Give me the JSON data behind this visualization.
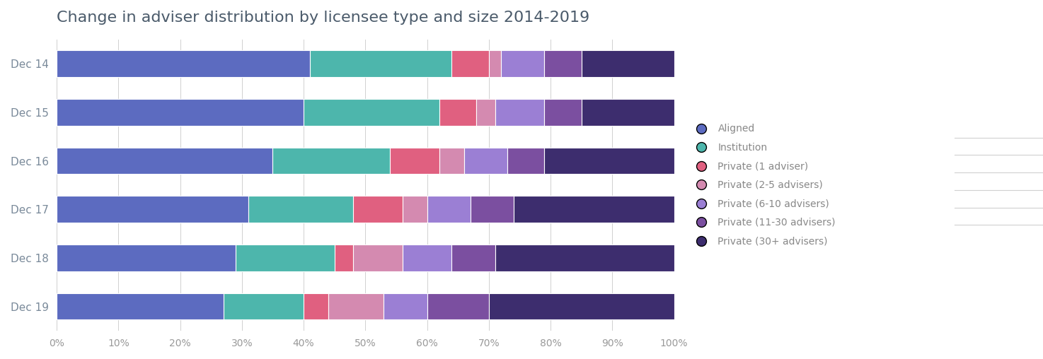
{
  "title": "Change in adviser distribution by licensee type and size 2014-2019",
  "categories": [
    "Dec 14",
    "Dec 15",
    "Dec 16",
    "Dec 17",
    "Dec 18",
    "Dec 19"
  ],
  "segments": {
    "Aligned": [
      41,
      40,
      35,
      31,
      29,
      27
    ],
    "Institution": [
      23,
      22,
      19,
      17,
      16,
      13
    ],
    "Private (1 adviser)": [
      6,
      6,
      8,
      8,
      3,
      4
    ],
    "Private (2-5 advisers)": [
      2,
      3,
      4,
      4,
      8,
      9
    ],
    "Private (6-10 advisers)": [
      7,
      8,
      7,
      7,
      8,
      7
    ],
    "Private (11-30 advisers)": [
      6,
      6,
      6,
      7,
      7,
      10
    ],
    "Private (30+ advisers)": [
      15,
      15,
      21,
      26,
      29,
      30
    ]
  },
  "colors": {
    "Aligned": "#5C6BC0",
    "Institution": "#4DB6AC",
    "Private (1 adviser)": "#E06080",
    "Private (2-5 advisers)": "#D48AB0",
    "Private (6-10 advisers)": "#9B7FD4",
    "Private (11-30 advisers)": "#7B4FA0",
    "Private (30+ advisers)": "#3D2D6E"
  },
  "xlim": [
    0,
    100
  ],
  "xticks": [
    0,
    10,
    20,
    30,
    40,
    50,
    60,
    70,
    80,
    90,
    100
  ],
  "xtick_labels": [
    "0%",
    "10%",
    "20%",
    "30%",
    "40%",
    "50%",
    "60%",
    "70%",
    "80%",
    "90%",
    "100%"
  ],
  "background_color": "#ffffff",
  "title_color": "#4a5a6a",
  "title_fontsize": 16,
  "label_fontsize": 11,
  "tick_fontsize": 10,
  "bar_height": 0.55,
  "legend_labels": [
    "Aligned",
    "Institution",
    "Private (1 adviser)",
    "Private (2-5 advisers)",
    "Private (6-10 advisers)",
    "Private (11-30 advisers)",
    "Private (30+ advisers)"
  ]
}
